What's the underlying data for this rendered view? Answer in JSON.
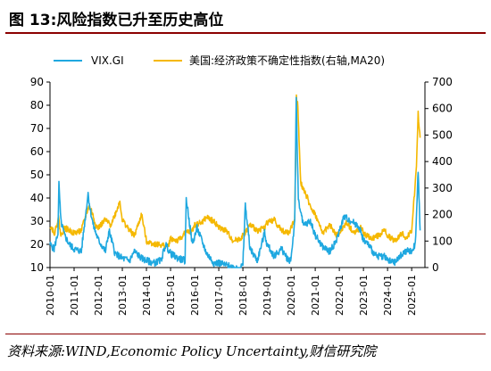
{
  "header": {
    "title": "图 13:风险指数已升至历史高位"
  },
  "footer": {
    "source": "资料来源:WIND,Economic Policy Uncertainty,财信研究院"
  },
  "colors": {
    "vix": "#1fa8e0",
    "epu": "#f5b800",
    "axis": "#000000",
    "title_rule": "#8b0000"
  },
  "chart_data": {
    "type": "line",
    "title": "",
    "legend_placement": "top",
    "grid": false,
    "x_ticks": [
      "2010-01",
      "2011-01",
      "2012-01",
      "2013-01",
      "2014-01",
      "2015-01",
      "2016-01",
      "2017-01",
      "2018-01",
      "2019-01",
      "2020-01",
      "2021-01",
      "2022-01",
      "2023-01",
      "2024-01",
      "2025-01"
    ],
    "y_left": {
      "min": 10,
      "max": 90,
      "ticks": [
        10,
        20,
        30,
        40,
        50,
        60,
        70,
        80,
        90
      ]
    },
    "y_right": {
      "min": 0,
      "max": 700,
      "ticks": [
        0,
        100,
        200,
        300,
        400,
        500,
        600,
        700
      ]
    },
    "series": [
      {
        "name": "VIX.GI",
        "axis": "left",
        "x": [
          2010.0,
          2010.17,
          2010.33,
          2010.37,
          2010.45,
          2010.6,
          2010.8,
          2011.0,
          2011.3,
          2011.58,
          2011.67,
          2011.8,
          2012.0,
          2012.3,
          2012.45,
          2012.7,
          2013.0,
          2013.3,
          2013.5,
          2013.8,
          2014.0,
          2014.3,
          2014.6,
          2014.8,
          2015.0,
          2015.3,
          2015.6,
          2015.65,
          2015.9,
          2016.1,
          2016.5,
          2016.8,
          2017.0,
          2017.3,
          2017.6,
          2017.9,
          2018.0,
          2018.1,
          2018.3,
          2018.6,
          2018.9,
          2019.0,
          2019.3,
          2019.6,
          2019.9,
          2020.0,
          2020.15,
          2020.21,
          2020.3,
          2020.5,
          2020.8,
          2021.0,
          2021.3,
          2021.6,
          2021.9,
          2022.0,
          2022.2,
          2022.5,
          2022.8,
          2023.0,
          2023.2,
          2023.5,
          2023.9,
          2024.0,
          2024.3,
          2024.6,
          2024.8,
          2025.0,
          2025.15,
          2025.27,
          2025.35
        ],
        "values": [
          20,
          18,
          25,
          46,
          30,
          24,
          20,
          18,
          17,
          42,
          35,
          28,
          22,
          17,
          26,
          16,
          14,
          13,
          17,
          14,
          13,
          12,
          13,
          20,
          16,
          14,
          13,
          40,
          20,
          27,
          16,
          12,
          12,
          11,
          10,
          10,
          11,
          37,
          18,
          13,
          25,
          20,
          15,
          18,
          13,
          14,
          30,
          82,
          40,
          28,
          30,
          24,
          19,
          17,
          22,
          26,
          32,
          30,
          28,
          22,
          20,
          15,
          15,
          13,
          12,
          16,
          17,
          17,
          20,
          52,
          26
        ]
      },
      {
        "name": "美国:经济政策不确定性指数(右轴,MA20)",
        "axis": "right",
        "x": [
          2010.0,
          2010.2,
          2010.35,
          2010.45,
          2010.6,
          2010.8,
          2011.0,
          2011.3,
          2011.6,
          2011.7,
          2011.9,
          2012.0,
          2012.3,
          2012.5,
          2012.7,
          2012.9,
          2013.0,
          2013.3,
          2013.5,
          2013.8,
          2014.0,
          2014.3,
          2014.6,
          2014.9,
          2015.0,
          2015.3,
          2015.6,
          2015.9,
          2016.0,
          2016.3,
          2016.5,
          2016.85,
          2017.0,
          2017.3,
          2017.6,
          2017.9,
          2018.0,
          2018.3,
          2018.6,
          2018.9,
          2019.0,
          2019.3,
          2019.6,
          2019.9,
          2020.0,
          2020.15,
          2020.22,
          2020.28,
          2020.4,
          2020.6,
          2020.8,
          2021.0,
          2021.3,
          2021.6,
          2021.9,
          2022.0,
          2022.3,
          2022.6,
          2022.9,
          2023.0,
          2023.3,
          2023.6,
          2023.9,
          2024.0,
          2024.3,
          2024.6,
          2024.8,
          2025.0,
          2025.1,
          2025.2,
          2025.27,
          2025.35
        ],
        "values": [
          160,
          130,
          190,
          120,
          150,
          140,
          130,
          140,
          230,
          220,
          160,
          150,
          180,
          160,
          200,
          250,
          180,
          140,
          120,
          200,
          100,
          90,
          85,
          80,
          110,
          100,
          130,
          140,
          160,
          170,
          190,
          170,
          150,
          140,
          100,
          110,
          120,
          160,
          140,
          150,
          170,
          180,
          140,
          130,
          150,
          180,
          640,
          610,
          320,
          280,
          230,
          200,
          130,
          160,
          120,
          130,
          170,
          130,
          150,
          130,
          110,
          120,
          140,
          120,
          100,
          130,
          110,
          140,
          260,
          380,
          580,
          490
        ]
      }
    ]
  }
}
